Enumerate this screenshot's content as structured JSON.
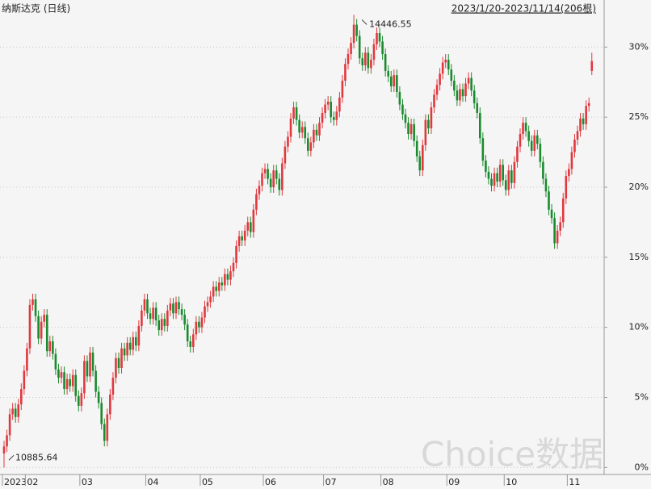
{
  "chart_data": {
    "type": "candlestick",
    "title": "纳斯达克 (日线)",
    "subtitle": "2023/1/20-2023/11/14(206根)",
    "watermark": "Choice数据",
    "up_color": "#e0383e",
    "down_color": "#1a8a2e",
    "grid": true,
    "ylim": [
      -0.5,
      32.9
    ],
    "yticks": [
      {
        "value": 0,
        "label": "0%"
      },
      {
        "value": 5,
        "label": "5%"
      },
      {
        "value": 10,
        "label": "10%"
      },
      {
        "value": 15,
        "label": "15%"
      },
      {
        "value": 20,
        "label": "20%"
      },
      {
        "value": 25,
        "label": "25%"
      },
      {
        "value": 30,
        "label": "30%"
      }
    ],
    "annotations": {
      "max": "14446.55",
      "min": "10885.64"
    },
    "categories": [
      "2023",
      null,
      null,
      null,
      null,
      null,
      null,
      null,
      "02",
      null,
      null,
      null,
      null,
      null,
      null,
      null,
      null,
      null,
      null,
      null,
      null,
      null,
      null,
      null,
      null,
      null,
      null,
      "03",
      null,
      null,
      null,
      null,
      null,
      null,
      null,
      null,
      null,
      null,
      null,
      null,
      null,
      null,
      null,
      null,
      null,
      null,
      null,
      null,
      null,
      null,
      "04",
      null,
      null,
      null,
      null,
      null,
      null,
      null,
      null,
      null,
      null,
      null,
      null,
      null,
      null,
      null,
      null,
      null,
      null,
      "05",
      null,
      null,
      null,
      null,
      null,
      null,
      null,
      null,
      null,
      null,
      null,
      null,
      null,
      null,
      null,
      null,
      null,
      null,
      null,
      null,
      null,
      "06",
      null,
      null,
      null,
      null,
      null,
      null,
      null,
      null,
      null,
      null,
      null,
      null,
      null,
      null,
      null,
      null,
      null,
      null,
      null,
      null,
      "07",
      null,
      null,
      null,
      null,
      null,
      null,
      null,
      null,
      null,
      null,
      null,
      null,
      null,
      null,
      null,
      null,
      null,
      null,
      null,
      "08",
      null,
      null,
      null,
      null,
      null,
      null,
      null,
      null,
      null,
      null,
      null,
      null,
      null,
      null,
      null,
      null,
      null,
      null,
      null,
      null,
      null,
      null,
      "09",
      null,
      null,
      null,
      null,
      null,
      null,
      null,
      null,
      null,
      null,
      null,
      null,
      null,
      null,
      null,
      null,
      null,
      null,
      null,
      "10",
      null,
      null,
      null,
      null,
      null,
      null,
      null,
      null,
      null,
      null,
      null,
      null,
      null,
      null,
      null,
      null,
      null,
      null,
      null,
      null,
      null,
      "11",
      null,
      null,
      null,
      null,
      null,
      null,
      null,
      null
    ],
    "open": [
      1.0,
      1.5,
      2.3,
      3.8,
      4.2,
      3.6,
      4.5,
      5.6,
      6.9,
      8.5,
      11.6,
      12.0,
      10.8,
      9.2,
      10.4,
      10.9,
      8.3,
      9.0,
      8.1,
      7.0,
      6.4,
      6.8,
      5.6,
      6.3,
      5.8,
      6.6,
      5.1,
      4.4,
      5.3,
      7.6,
      6.5,
      8.2,
      6.9,
      5.4,
      4.6,
      3.1,
      1.9,
      3.8,
      5.2,
      6.4,
      7.8,
      7.1,
      8.5,
      8.0,
      8.9,
      8.4,
      9.3,
      8.7,
      10.1,
      11.2,
      12.0,
      11.0,
      10.6,
      11.4,
      10.5,
      9.8,
      10.6,
      10.1,
      11.2,
      11.7,
      11.0,
      11.8,
      11.3,
      10.9,
      10.2,
      9.0,
      8.6,
      9.5,
      10.4,
      10.0,
      10.7,
      11.5,
      11.8,
      12.2,
      12.9,
      12.6,
      13.2,
      13.0,
      13.8,
      13.4,
      14.0,
      14.6,
      15.8,
      16.5,
      16.2,
      16.9,
      17.5,
      16.8,
      18.4,
      19.5,
      20.1,
      21.0,
      21.3,
      20.6,
      20.0,
      21.2,
      20.6,
      19.8,
      21.7,
      22.9,
      23.6,
      24.9,
      25.7,
      24.8,
      23.9,
      24.3,
      23.5,
      22.6,
      23.2,
      24.1,
      23.7,
      24.6,
      25.3,
      25.9,
      26.1,
      25.0,
      24.8,
      25.4,
      26.4,
      27.6,
      28.8,
      29.5,
      30.3,
      31.6,
      30.8,
      29.2,
      28.7,
      29.6,
      28.5,
      29.1,
      30.2,
      31.0,
      30.4,
      29.5,
      28.3,
      27.9,
      27.2,
      28.0,
      26.8,
      25.9,
      25.2,
      24.6,
      23.8,
      24.5,
      23.3,
      22.2,
      21.2,
      23.0,
      24.8,
      24.2,
      25.7,
      26.6,
      27.3,
      28.1,
      28.9,
      29.1,
      28.4,
      27.6,
      26.9,
      26.2,
      27.0,
      26.5,
      27.4,
      27.8,
      26.9,
      26.0,
      25.3,
      23.5,
      21.9,
      21.1,
      20.6,
      20.1,
      21.0,
      20.4,
      21.6,
      20.5,
      19.8,
      21.2,
      20.3,
      21.8,
      22.9,
      23.8,
      24.6,
      24.0,
      23.3,
      22.6,
      23.7,
      23.1,
      21.8,
      20.6,
      19.7,
      18.4,
      17.8,
      16.0,
      16.9,
      17.5,
      19.2,
      20.8,
      21.3,
      22.5,
      23.4,
      24.0,
      24.9,
      24.5,
      25.8,
      28.3
    ],
    "high": [
      1.9,
      2.7,
      4.2,
      4.6,
      4.6,
      4.9,
      6.0,
      7.3,
      8.9,
      12.0,
      12.4,
      12.4,
      11.2,
      10.8,
      11.3,
      11.3,
      9.4,
      9.4,
      8.5,
      7.4,
      7.2,
      7.2,
      6.7,
      6.7,
      7.0,
      7.0,
      5.5,
      5.7,
      8.0,
      8.0,
      8.6,
      8.6,
      7.3,
      5.8,
      5.0,
      3.5,
      4.2,
      5.6,
      6.8,
      8.2,
      8.2,
      8.9,
      8.9,
      9.3,
      9.3,
      9.7,
      9.7,
      10.5,
      11.6,
      12.4,
      12.4,
      11.4,
      11.8,
      11.8,
      10.9,
      11.0,
      11.0,
      11.6,
      12.1,
      12.1,
      12.2,
      12.2,
      11.7,
      11.3,
      10.6,
      9.4,
      9.9,
      10.8,
      10.8,
      11.1,
      11.9,
      12.2,
      12.6,
      13.3,
      13.3,
      13.6,
      13.6,
      14.2,
      14.2,
      14.4,
      15.0,
      16.2,
      16.9,
      16.9,
      17.3,
      17.9,
      17.9,
      18.8,
      19.9,
      20.5,
      21.4,
      21.7,
      21.7,
      21.0,
      21.6,
      21.6,
      21.0,
      22.1,
      23.3,
      24.0,
      25.3,
      26.1,
      26.1,
      25.2,
      24.7,
      24.7,
      23.9,
      23.6,
      24.5,
      24.5,
      25.0,
      25.7,
      26.3,
      26.5,
      26.5,
      25.4,
      25.8,
      26.8,
      28.0,
      29.2,
      29.9,
      30.7,
      32.3,
      32.0,
      31.2,
      29.6,
      30.0,
      30.0,
      29.5,
      30.6,
      31.4,
      31.4,
      30.8,
      29.9,
      28.7,
      28.3,
      28.4,
      28.4,
      27.2,
      26.3,
      25.6,
      25.0,
      24.9,
      24.9,
      23.7,
      22.6,
      23.4,
      25.2,
      25.2,
      26.1,
      27.0,
      27.7,
      28.5,
      29.3,
      29.5,
      29.5,
      28.8,
      28.0,
      27.3,
      27.4,
      27.4,
      27.8,
      28.2,
      28.2,
      27.3,
      26.4,
      25.7,
      23.9,
      22.3,
      21.5,
      21.0,
      21.4,
      21.4,
      22.0,
      22.0,
      20.9,
      21.6,
      21.6,
      22.2,
      23.3,
      24.2,
      25.0,
      25.0,
      24.4,
      23.7,
      24.1,
      24.1,
      23.5,
      22.2,
      21.0,
      20.1,
      18.8,
      18.2,
      17.3,
      17.9,
      19.6,
      21.2,
      21.7,
      22.9,
      23.8,
      24.4,
      25.3,
      25.3,
      26.2,
      26.4,
      29.6
    ],
    "low": [
      0.0,
      1.1,
      1.9,
      3.4,
      3.2,
      3.2,
      4.1,
      5.2,
      6.5,
      8.1,
      11.2,
      10.4,
      8.8,
      8.8,
      10.0,
      7.9,
      7.9,
      7.7,
      6.6,
      6.0,
      6.0,
      5.2,
      5.2,
      5.4,
      5.4,
      4.7,
      4.0,
      4.0,
      4.9,
      6.1,
      6.1,
      6.5,
      5.0,
      4.2,
      2.7,
      1.5,
      1.5,
      3.4,
      4.8,
      6.0,
      6.7,
      6.7,
      7.6,
      7.6,
      8.0,
      8.0,
      8.3,
      8.3,
      9.7,
      10.8,
      10.6,
      10.2,
      10.2,
      10.1,
      9.4,
      9.4,
      9.7,
      9.7,
      10.8,
      10.6,
      10.6,
      10.9,
      10.5,
      9.8,
      8.6,
      8.2,
      8.2,
      9.1,
      9.6,
      9.6,
      10.3,
      11.1,
      11.4,
      11.8,
      12.2,
      12.2,
      12.6,
      12.6,
      13.0,
      13.0,
      13.6,
      14.2,
      15.4,
      15.8,
      15.8,
      16.5,
      16.4,
      16.4,
      18.0,
      19.1,
      19.7,
      20.6,
      20.2,
      19.6,
      19.6,
      20.2,
      19.4,
      19.4,
      21.3,
      22.5,
      23.2,
      24.5,
      24.4,
      23.5,
      23.5,
      23.1,
      22.2,
      22.2,
      22.8,
      23.3,
      23.3,
      24.2,
      24.9,
      25.5,
      24.6,
      24.4,
      24.4,
      25.0,
      26.0,
      27.2,
      28.4,
      29.1,
      29.9,
      30.4,
      28.8,
      28.3,
      28.3,
      28.1,
      28.1,
      28.7,
      29.8,
      30.0,
      29.1,
      27.9,
      27.5,
      26.8,
      26.8,
      26.4,
      25.5,
      24.8,
      24.2,
      23.4,
      23.4,
      22.9,
      21.8,
      20.8,
      20.8,
      22.6,
      23.8,
      23.8,
      25.3,
      26.2,
      26.9,
      27.7,
      28.5,
      28.0,
      27.2,
      26.5,
      25.8,
      25.8,
      26.1,
      26.1,
      27.0,
      26.5,
      25.6,
      24.9,
      23.1,
      21.5,
      20.7,
      20.2,
      19.7,
      19.7,
      20.0,
      20.0,
      20.1,
      19.4,
      19.4,
      19.9,
      19.9,
      21.4,
      22.5,
      23.4,
      23.6,
      22.9,
      22.2,
      22.2,
      22.7,
      21.4,
      20.2,
      19.3,
      18.0,
      17.4,
      15.6,
      15.6,
      16.5,
      17.1,
      18.8,
      20.4,
      20.9,
      22.1,
      23.0,
      23.6,
      24.1,
      24.1,
      25.4,
      28.0
    ],
    "close": [
      1.5,
      2.3,
      3.8,
      4.2,
      3.6,
      4.5,
      5.6,
      6.9,
      8.5,
      11.6,
      12.0,
      10.8,
      9.2,
      10.4,
      10.9,
      8.3,
      9.0,
      8.1,
      7.0,
      6.4,
      6.8,
      5.6,
      6.3,
      5.8,
      6.6,
      5.1,
      4.4,
      5.3,
      7.6,
      6.5,
      8.2,
      6.9,
      5.4,
      4.6,
      3.1,
      1.9,
      3.8,
      5.2,
      6.4,
      7.8,
      7.1,
      8.5,
      8.0,
      8.9,
      8.4,
      9.3,
      8.7,
      10.1,
      11.2,
      12.0,
      11.0,
      10.6,
      11.4,
      10.5,
      9.8,
      10.6,
      10.1,
      11.2,
      11.7,
      11.0,
      11.8,
      11.3,
      10.9,
      10.2,
      9.0,
      8.6,
      9.5,
      10.4,
      10.0,
      10.7,
      11.5,
      11.8,
      12.2,
      12.9,
      12.6,
      13.2,
      13.0,
      13.8,
      13.4,
      14.0,
      14.6,
      15.8,
      16.5,
      16.2,
      16.9,
      17.5,
      16.8,
      18.4,
      19.5,
      20.1,
      21.0,
      21.3,
      20.6,
      20.0,
      21.2,
      20.6,
      19.8,
      21.7,
      22.9,
      23.6,
      24.9,
      25.7,
      24.8,
      23.9,
      24.3,
      23.5,
      22.6,
      23.2,
      24.1,
      23.7,
      24.6,
      25.3,
      25.9,
      26.1,
      25.0,
      24.8,
      25.4,
      26.4,
      27.6,
      28.8,
      29.5,
      30.3,
      31.6,
      30.8,
      29.2,
      28.7,
      29.6,
      28.5,
      29.1,
      30.2,
      31.0,
      30.4,
      29.5,
      28.3,
      27.9,
      27.2,
      28.0,
      26.8,
      25.9,
      25.2,
      24.6,
      23.8,
      24.5,
      23.3,
      22.2,
      21.2,
      23.0,
      24.8,
      24.2,
      25.7,
      26.6,
      27.3,
      28.1,
      28.9,
      29.1,
      28.4,
      27.6,
      26.9,
      26.2,
      27.0,
      26.5,
      27.4,
      27.8,
      26.9,
      26.0,
      25.3,
      23.5,
      21.9,
      21.1,
      20.6,
      20.1,
      21.0,
      20.4,
      21.6,
      20.5,
      19.8,
      21.2,
      20.3,
      21.8,
      22.9,
      23.8,
      24.6,
      24.0,
      23.3,
      22.6,
      23.7,
      23.1,
      21.8,
      20.6,
      19.7,
      18.4,
      17.8,
      16.0,
      16.9,
      17.5,
      19.2,
      20.8,
      21.3,
      22.5,
      23.4,
      24.0,
      24.9,
      24.5,
      25.8,
      26.0,
      29.0
    ]
  }
}
